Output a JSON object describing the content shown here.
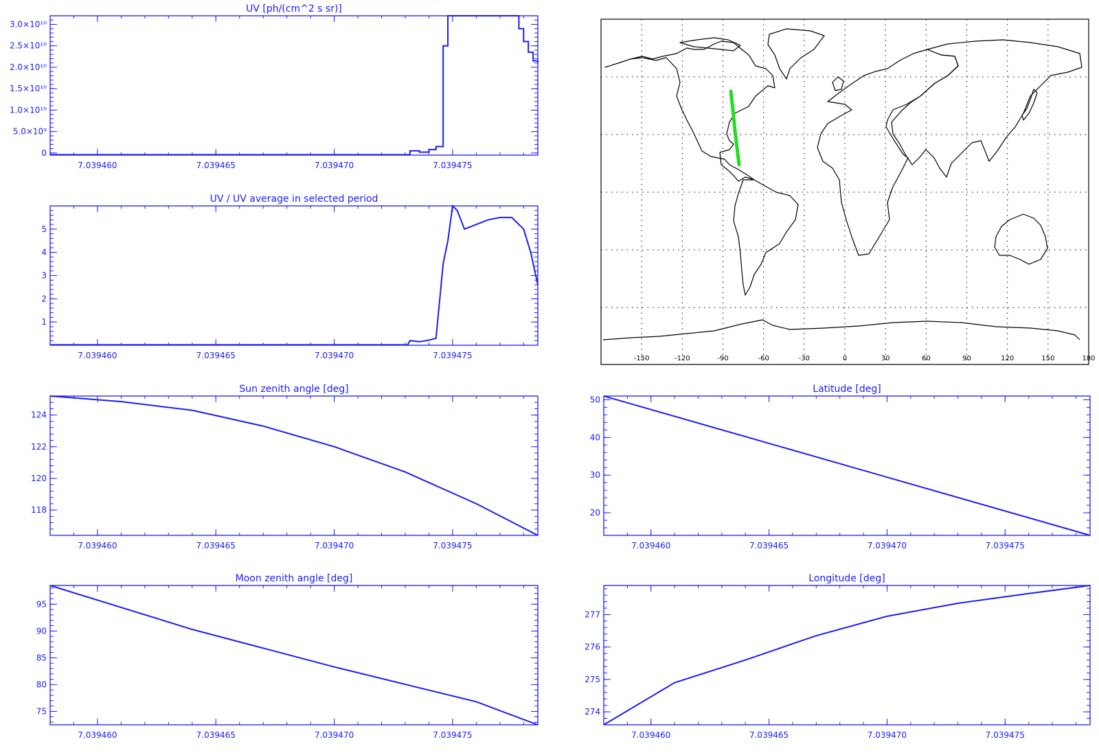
{
  "colors": {
    "axis": "#1a1aff",
    "line": "#1a1aff",
    "map_line": "#000000",
    "track": "#22dd22",
    "grid": "#000000"
  },
  "x_ticks": [
    "7.039460",
    "7.039465",
    "7.039470",
    "7.039475"
  ],
  "map": {
    "lon_ticks": [
      "-150",
      "-120",
      "-90",
      "-60",
      "-30",
      "0",
      "30",
      "60",
      "90",
      "120",
      "150",
      "180"
    ]
  },
  "chart_data": [
    {
      "id": "uv",
      "type": "line",
      "title": "UV [ph/(cm^2 s sr)]",
      "xlim": [
        7.039458,
        7.0394786
      ],
      "ylim": [
        -0.05,
        3.2
      ],
      "ytick_values": [
        0,
        0.5,
        1.0,
        1.5,
        2.0,
        2.5,
        3.0
      ],
      "ytick_labels": [
        "0",
        "5.0×10⁹",
        "1.0×10¹⁰",
        "1.5×10¹⁰",
        "2.0×10¹⁰",
        "2.5×10¹⁰",
        "3.0×10¹⁰"
      ],
      "step": true,
      "series": [
        {
          "values": [
            [
              7.039458,
              -0.04
            ],
            [
              7.0394731,
              -0.04
            ],
            [
              7.0394732,
              0.05
            ],
            [
              7.0394736,
              0.02
            ],
            [
              7.039474,
              0.08
            ],
            [
              7.0394743,
              0.15
            ],
            [
              7.0394746,
              2.5
            ],
            [
              7.0394748,
              3.2
            ],
            [
              7.0394777,
              3.2
            ],
            [
              7.0394778,
              2.9
            ],
            [
              7.039478,
              2.6
            ],
            [
              7.0394782,
              2.35
            ],
            [
              7.0394784,
              2.15
            ],
            [
              7.0394786,
              2.1
            ]
          ]
        }
      ]
    },
    {
      "id": "uvavg",
      "type": "line",
      "title": "UV / UV average in selected period",
      "xlim": [
        7.039458,
        7.0394786
      ],
      "ylim": [
        0,
        6
      ],
      "ytick_values": [
        1,
        2,
        3,
        4,
        5
      ],
      "ytick_labels": [
        "1",
        "2",
        "3",
        "4",
        "5"
      ],
      "series": [
        {
          "values": [
            [
              7.039458,
              0.02
            ],
            [
              7.0394731,
              0.02
            ],
            [
              7.0394732,
              0.2
            ],
            [
              7.0394736,
              0.15
            ],
            [
              7.039474,
              0.22
            ],
            [
              7.0394743,
              0.3
            ],
            [
              7.0394746,
              3.5
            ],
            [
              7.0394748,
              4.5
            ],
            [
              7.039475,
              6.0
            ],
            [
              7.0394752,
              5.8
            ],
            [
              7.0394755,
              5.0
            ],
            [
              7.039476,
              5.2
            ],
            [
              7.0394765,
              5.4
            ],
            [
              7.039477,
              5.5
            ],
            [
              7.0394775,
              5.5
            ],
            [
              7.039478,
              5.0
            ],
            [
              7.0394783,
              4.0
            ],
            [
              7.0394786,
              2.6
            ]
          ]
        }
      ]
    },
    {
      "id": "sza",
      "type": "line",
      "title": "Sun zenith angle [deg]",
      "xlim": [
        7.039458,
        7.0394786
      ],
      "ylim": [
        116.4,
        125.2
      ],
      "ytick_values": [
        118,
        120,
        122,
        124
      ],
      "ytick_labels": [
        "118",
        "120",
        "122",
        "124"
      ],
      "series": [
        {
          "values": [
            [
              7.039458,
              125.2
            ],
            [
              7.039461,
              124.85
            ],
            [
              7.039464,
              124.3
            ],
            [
              7.039467,
              123.3
            ],
            [
              7.03947,
              122.0
            ],
            [
              7.039473,
              120.4
            ],
            [
              7.039476,
              118.4
            ],
            [
              7.0394786,
              116.4
            ]
          ]
        }
      ]
    },
    {
      "id": "lat",
      "type": "line",
      "title": "Latitude [deg]",
      "xlim": [
        7.039458,
        7.0394786
      ],
      "ylim": [
        14,
        51
      ],
      "ytick_values": [
        20,
        30,
        40,
        50
      ],
      "ytick_labels": [
        "20",
        "30",
        "40",
        "50"
      ],
      "series": [
        {
          "values": [
            [
              7.039458,
              51
            ],
            [
              7.0394786,
              14
            ]
          ]
        }
      ]
    },
    {
      "id": "mza",
      "type": "line",
      "title": "Moon zenith angle [deg]",
      "xlim": [
        7.039458,
        7.0394786
      ],
      "ylim": [
        72.5,
        98.5
      ],
      "ytick_values": [
        75,
        80,
        85,
        90,
        95
      ],
      "ytick_labels": [
        "75",
        "80",
        "85",
        "90",
        "95"
      ],
      "series": [
        {
          "values": [
            [
              7.039458,
              98.5
            ],
            [
              7.039464,
              90.3
            ],
            [
              7.03947,
              83.3
            ],
            [
              7.039476,
              76.8
            ],
            [
              7.0394786,
              72.5
            ]
          ]
        }
      ]
    },
    {
      "id": "lon",
      "type": "line",
      "title": "Longitude [deg]",
      "xlim": [
        7.039458,
        7.0394786
      ],
      "ylim": [
        273.6,
        277.9
      ],
      "ytick_values": [
        274,
        275,
        276,
        277
      ],
      "ytick_labels": [
        "274",
        "275",
        "276",
        "277"
      ],
      "series": [
        {
          "values": [
            [
              7.039458,
              273.6
            ],
            [
              7.039461,
              274.9
            ],
            [
              7.039464,
              275.6
            ],
            [
              7.039467,
              276.35
            ],
            [
              7.03947,
              276.95
            ],
            [
              7.039473,
              277.35
            ],
            [
              7.039476,
              277.65
            ],
            [
              7.0394786,
              277.9
            ]
          ]
        }
      ]
    }
  ]
}
